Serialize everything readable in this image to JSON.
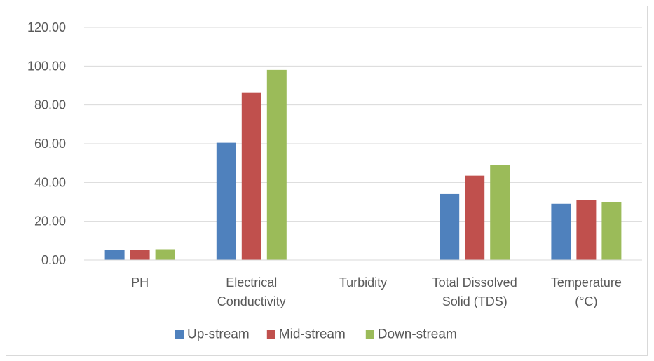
{
  "chart_data": {
    "type": "bar",
    "title": "",
    "xlabel": "",
    "ylabel": "",
    "ylim": [
      0,
      120
    ],
    "yticks": [
      "0.00",
      "20.00",
      "40.00",
      "60.00",
      "80.00",
      "100.00",
      "120.00"
    ],
    "grid": "horizontal",
    "legend_position": "bottom",
    "categories": [
      [
        "PH"
      ],
      [
        "Electrical",
        "Conductivity"
      ],
      [
        "Turbidity"
      ],
      [
        "Total Dissolved",
        "Solid (TDS)"
      ],
      [
        "Temperature",
        "(°C)"
      ]
    ],
    "series": [
      {
        "name": "Up-stream",
        "color": "#4f81bd",
        "values": [
          5.2,
          60.5,
          0,
          34.0,
          29.0
        ]
      },
      {
        "name": "Mid-stream",
        "color": "#c0504d",
        "values": [
          5.2,
          86.5,
          0,
          43.5,
          31.0
        ]
      },
      {
        "name": "Down-stream",
        "color": "#9bbb59",
        "values": [
          5.6,
          98.0,
          0,
          49.0,
          30.0
        ]
      }
    ]
  }
}
